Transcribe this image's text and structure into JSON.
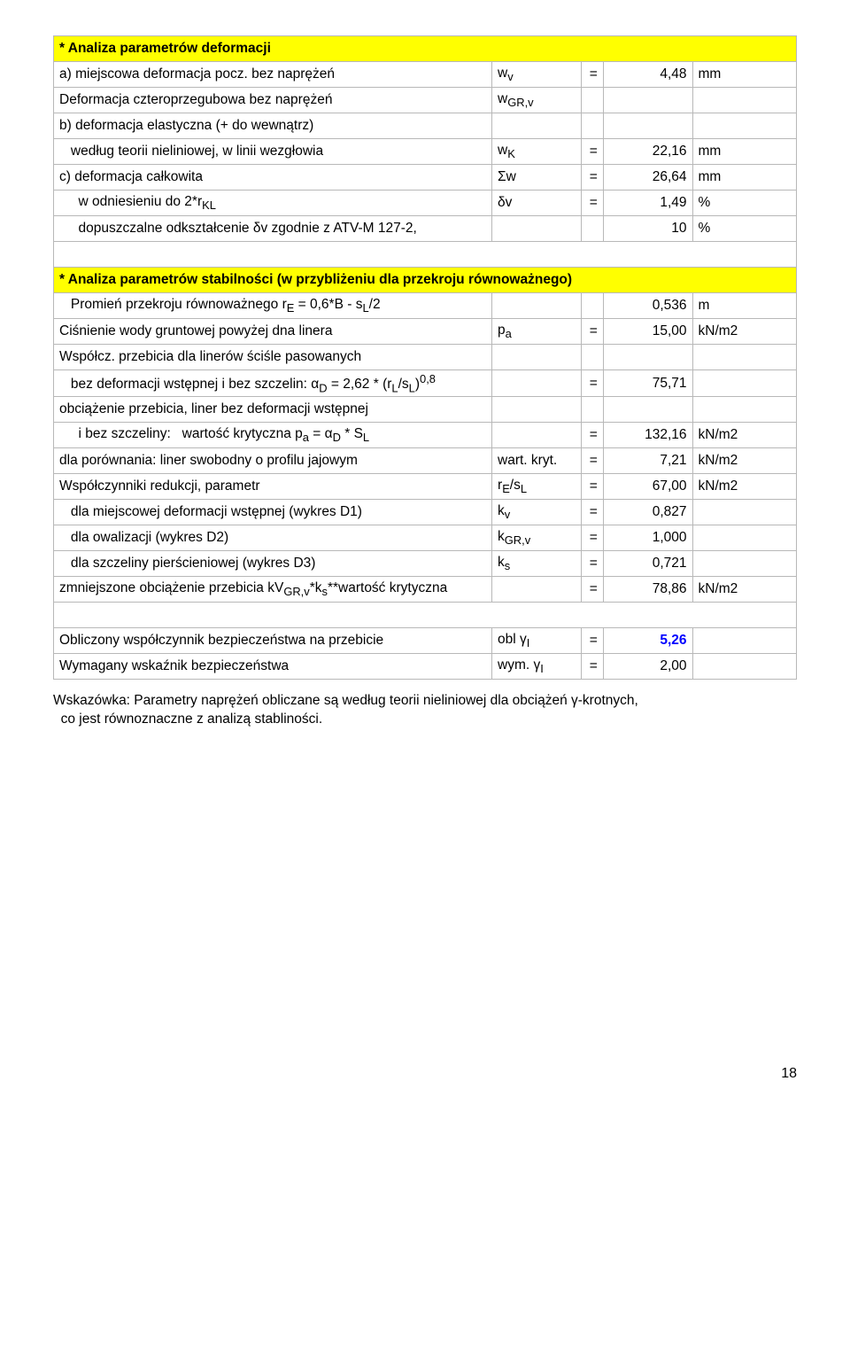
{
  "section1": {
    "header": "* Analiza parametrów deformacji",
    "rows": [
      {
        "label": "a) miejscowa deformacja pocz. bez naprężeń",
        "sym": "w<sub>v</sub>",
        "eq": "=",
        "val": "4,48",
        "unit": "mm"
      },
      {
        "label": "Deformacja czteroprzegubowa bez naprężeń",
        "sym": "w<sub>GR,v</sub>",
        "eq": "",
        "val": "",
        "unit": ""
      },
      {
        "label": "b) deformacja elastyczna (+ do wewnątrz)",
        "sym": "",
        "eq": "",
        "val": "",
        "unit": ""
      },
      {
        "label": "&nbsp;&nbsp;&nbsp;według teorii nieliniowej, w linii wezgłowia",
        "sym": "w<sub>K</sub>",
        "eq": "=",
        "val": "22,16",
        "unit": "mm"
      },
      {
        "label": "c) deformacja całkowita",
        "sym": "Σw",
        "eq": "=",
        "val": "26,64",
        "unit": "mm"
      },
      {
        "label": "&nbsp;&nbsp;&nbsp;&nbsp;&nbsp;w odniesieniu do 2*r<sub>KL</sub>",
        "sym": "δv",
        "eq": "=",
        "val": "1,49",
        "unit": "%"
      },
      {
        "label": "&nbsp;&nbsp;&nbsp;&nbsp;&nbsp;dopuszczalne odkształcenie δv zgodnie z ATV-M 127-2,",
        "sym": "",
        "eq": "",
        "val": "10",
        "unit": "%"
      }
    ]
  },
  "section2": {
    "header": "* Analiza parametrów stabilności (w przybliżeniu dla przekroju równoważnego)",
    "rows": [
      {
        "label": "&nbsp;&nbsp;&nbsp;Promień przekroju równoważnego r<sub>E</sub> = 0,6*B - s<sub>L</sub>/2",
        "sym": "",
        "eq": "",
        "val": "0,536",
        "unit": "m"
      },
      {
        "label": "Ciśnienie wody gruntowej powyżej dna linera",
        "sym": "p<sub>a</sub>",
        "eq": "=",
        "val": "15,00",
        "unit": "kN/m2"
      },
      {
        "label": "Współcz. przebicia dla linerów ściśle pasowanych",
        "sym": "",
        "eq": "",
        "val": "",
        "unit": ""
      },
      {
        "label": "&nbsp;&nbsp;&nbsp;bez deformacji wstępnej i bez szczelin: α<sub>D</sub> = 2,62 * (r<sub>L</sub>/s<sub>L</sub>)<sup>0,8</sup>",
        "sym": "",
        "eq": "=",
        "val": "75,71",
        "unit": ""
      },
      {
        "label": "obciążenie przebicia, liner bez deformacji wstępnej",
        "sym": "",
        "eq": "",
        "val": "",
        "unit": ""
      },
      {
        "label": "&nbsp;&nbsp;&nbsp;&nbsp;&nbsp;i bez szczeliny:&nbsp;&nbsp;&nbsp;wartość krytyczna p<sub>a</sub> = α<sub>D</sub> * S<sub>L</sub>",
        "sym": "",
        "eq": "=",
        "val": "132,16",
        "unit": "kN/m2"
      },
      {
        "label": "dla porównania: liner swobodny o profilu jajowym",
        "sym": "wart. kryt.",
        "eq": "=",
        "val": "7,21",
        "unit": "kN/m2"
      },
      {
        "label": "Współczynniki redukcji, parametr",
        "sym": "r<sub>E</sub>/s<sub>L</sub>",
        "eq": "=",
        "val": "67,00",
        "unit": "kN/m2"
      },
      {
        "label": "&nbsp;&nbsp;&nbsp;dla miejscowej deformacji wstępnej (wykres D1)",
        "sym": "k<sub>v</sub>",
        "eq": "=",
        "val": "0,827",
        "unit": ""
      },
      {
        "label": "&nbsp;&nbsp;&nbsp;dla owalizacji (wykres D2)",
        "sym": "k<sub>GR,v</sub>",
        "eq": "=",
        "val": "1,000",
        "unit": ""
      },
      {
        "label": "&nbsp;&nbsp;&nbsp;dla szczeliny pierścieniowej (wykres D3)",
        "sym": "k<sub>s</sub>",
        "eq": "=",
        "val": "0,721",
        "unit": ""
      },
      {
        "label": "zmniejszone obciążenie przebicia kV<sub>GR,v</sub>*k<sub>s</sub>**wartość krytyczna",
        "sym": "",
        "eq": "=",
        "val": "78,86",
        "unit": "kN/m2"
      },
      {
        "label": "",
        "sym": "",
        "eq": "",
        "val": "",
        "unit": "",
        "blank": true
      },
      {
        "label": "Obliczony współczynnik bezpieczeństwa na przebicie",
        "sym": "obl γ<sub>I</sub>",
        "eq": "=",
        "val": "5,26",
        "unit": "",
        "blue": true
      },
      {
        "label": "Wymagany wskaźnik bezpieczeństwa",
        "sym": "wym. γ<sub>I</sub>",
        "eq": "=",
        "val": "2,00",
        "unit": ""
      }
    ]
  },
  "footnote": {
    "line1": "Wskazówka: Parametry naprężeń obliczane są według teorii nieliniowej dla obciążeń γ-krotnych,",
    "line2": "co jest równoznaczne z analizą stabliności."
  },
  "pagenum": "18",
  "colors": {
    "header_bg": "#ffff00",
    "border": "#b8b8b8",
    "blue": "#0000ff"
  }
}
